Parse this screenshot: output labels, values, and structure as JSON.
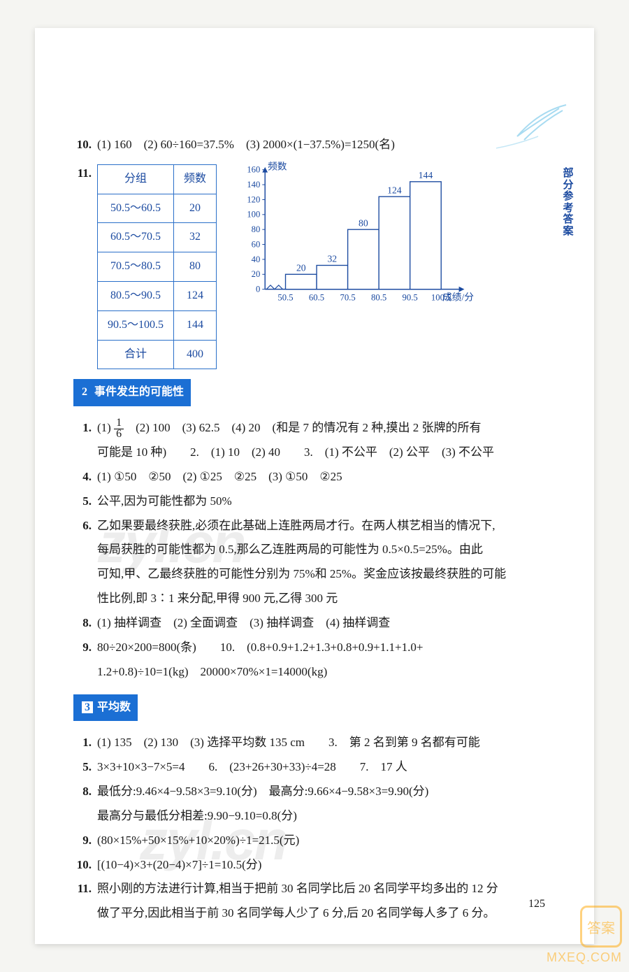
{
  "side_label": "部分参考答案",
  "q10": {
    "num": "10.",
    "text": "(1) 160　(2) 60÷160=37.5%　(3) 2000×(1−37.5%)=1250(名)"
  },
  "q11": {
    "num": "11."
  },
  "freq_table": {
    "headers": [
      "分组",
      "频数"
    ],
    "rows": [
      [
        "50.5～60.5",
        "20"
      ],
      [
        "60.5～70.5",
        "32"
      ],
      [
        "70.5～80.5",
        "80"
      ],
      [
        "80.5～90.5",
        "124"
      ],
      [
        "90.5～100.5",
        "144"
      ],
      [
        "合计",
        "400"
      ]
    ],
    "border_color": "#2a6fc9",
    "text_color": "#1b4aa0"
  },
  "chart": {
    "type": "bar",
    "y_label": "频数",
    "x_label": "成绩/分",
    "x_ticks": [
      "50.5",
      "60.5",
      "70.5",
      "80.5",
      "90.5",
      "100.5"
    ],
    "y_ticks": [
      0,
      20,
      40,
      60,
      80,
      100,
      120,
      140,
      160
    ],
    "values": [
      20,
      32,
      80,
      124,
      144
    ],
    "bar_labels": [
      "20",
      "32",
      "80",
      "124",
      "144"
    ],
    "ylim": [
      0,
      160
    ],
    "axis_color": "#1b4aa0",
    "bar_border": "#1b4aa0",
    "bar_fill": "#ffffff",
    "label_fontsize": 14,
    "tick_fontsize": 13
  },
  "section2": {
    "num": "2",
    "title": "事件发生的可能性"
  },
  "s2": {
    "q1_num": "1.",
    "q1_a": "(1) ",
    "q1_frac_n": "1",
    "q1_frac_d": "6",
    "q1_b": "　(2) 100　(3) 62.5　(4) 20　(和是 7 的情况有 2 种,摸出 2 张牌的所有",
    "q1_c": "可能是 10 种)　　2.　(1) 10　(2) 40　　3.　(1) 不公平　(2) 公平　(3) 不公平",
    "q4_num": "4.",
    "q4": "(1) ①50　②50　(2) ①25　②25　(3) ①50　②25",
    "q5_num": "5.",
    "q5": "公平,因为可能性都为 50%",
    "q6_num": "6.",
    "q6a": "乙如果要最终获胜,必须在此基础上连胜两局才行。在两人棋艺相当的情况下,",
    "q6b": "每局获胜的可能性都为 0.5,那么乙连胜两局的可能性为 0.5×0.5=25%。由此",
    "q6c": "可知,甲、乙最终获胜的可能性分别为 75%和 25%。奖金应该按最终获胜的可能",
    "q6d": "性比例,即 3∶1 来分配,甲得 900 元,乙得 300 元",
    "q8_num": "8.",
    "q8": "(1) 抽样调查　(2) 全面调查　(3) 抽样调查　(4) 抽样调查",
    "q9_num": "9.",
    "q9a": "80÷20×200=800(条)　　10.　(0.8+0.9+1.2+1.3+0.8+0.9+1.1+1.0+",
    "q9b": "1.2+0.8)÷10=1(kg)　20000×70%×1=14000(kg)"
  },
  "section3": {
    "num": "3",
    "title": "平均数"
  },
  "s3": {
    "q1_num": "1.",
    "q1": "(1) 135　(2) 130　(3) 选择平均数 135 cm　　3.　第 2 名到第 9 名都有可能",
    "q5_num": "5.",
    "q5": "3×3+10×3−7×5=4　　6.　(23+26+30+33)÷4=28　　7.　17 人",
    "q8_num": "8.",
    "q8a": "最低分:9.46×4−9.58×3=9.10(分)　最高分:9.66×4−9.58×3=9.90(分)",
    "q8b": "最高分与最低分相差:9.90−9.10=0.8(分)",
    "q9_num": "9.",
    "q9": "(80×15%+50×15%+10×20%)÷1=21.5(元)",
    "q10_num": "10.",
    "q10": "[(10−4)×3+(20−4)×7]÷1=10.5(分)",
    "q11_num": "11.",
    "q11a": "照小刚的方法进行计算,相当于把前 30 名同学比后 20 名同学平均多出的 12 分",
    "q11b": "做了平分,因此相当于前 30 名同学每人少了 6 分,后 20 名同学每人多了 6 分。"
  },
  "page_number": "125",
  "watermark": "zyl.cn",
  "stamp_text": "答案",
  "stamp_url": "MXEQ.COM"
}
